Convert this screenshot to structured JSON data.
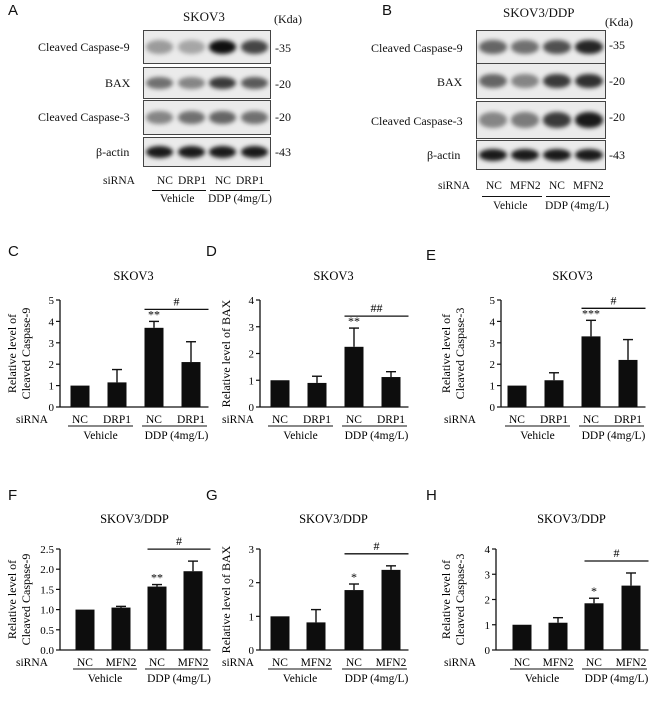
{
  "panels": {
    "A": {
      "letter": "A",
      "title": "SKOV3",
      "kda": "(Kda)",
      "rows": [
        {
          "label": "Cleaved Caspase-9",
          "kd": "-35",
          "intensity": [
            0.35,
            0.3,
            1.0,
            0.75
          ]
        },
        {
          "label": "BAX",
          "kd": "-20",
          "intensity": [
            0.55,
            0.45,
            0.8,
            0.65
          ]
        },
        {
          "label": "Cleaved Caspase-3",
          "kd": "-20",
          "intensity": [
            0.45,
            0.55,
            0.6,
            0.55
          ]
        },
        {
          "label": "β-actin",
          "kd": "-43",
          "intensity": [
            0.95,
            0.95,
            0.95,
            0.95
          ]
        }
      ],
      "sirna": "siRNA",
      "lanes": [
        "NC",
        "DRP1",
        "NC",
        "DRP1"
      ],
      "groups": [
        "Vehicle",
        "DDP (4mg/L)"
      ]
    },
    "B": {
      "letter": "B",
      "title": "SKOV3/DDP",
      "kda": "(Kda)",
      "rows": [
        {
          "label": "Cleaved Caspase-9",
          "kd": "-35",
          "intensity": [
            0.6,
            0.55,
            0.7,
            0.9
          ]
        },
        {
          "label": "BAX",
          "kd": "-20",
          "intensity": [
            0.6,
            0.45,
            0.8,
            0.85
          ]
        },
        {
          "label": "Cleaved Caspase-3",
          "kd": "-20",
          "intensity": [
            0.45,
            0.5,
            0.8,
            0.95
          ]
        },
        {
          "label": "β-actin",
          "kd": "-43",
          "intensity": [
            0.95,
            0.95,
            0.95,
            0.95
          ]
        }
      ],
      "sirna": "siRNA",
      "lanes": [
        "NC",
        "MFN2",
        "NC",
        "MFN2"
      ],
      "groups": [
        "Vehicle",
        "DDP (4mg/L)"
      ]
    }
  },
  "chart_data": [
    {
      "id": "C",
      "type": "bar",
      "title": "SKOV3",
      "ylabel": [
        "Relative level of",
        "Cleaved Caspase-9"
      ],
      "categories": [
        "NC",
        "DRP1",
        "NC",
        "DRP1"
      ],
      "values": [
        1.0,
        1.15,
        3.7,
        2.1
      ],
      "errors": [
        0,
        0.6,
        0.3,
        0.95
      ],
      "ylim": [
        0,
        5
      ],
      "yticks": [
        "0",
        "1",
        "2",
        "3",
        "4",
        "5"
      ],
      "sig": [
        "",
        "",
        "**",
        ""
      ],
      "bracket": "#",
      "sirna": "siRNA",
      "groups": [
        "Vehicle",
        "DDP (4mg/L)"
      ]
    },
    {
      "id": "D",
      "type": "bar",
      "title": "SKOV3",
      "ylabel": [
        "Relative level of BAX"
      ],
      "categories": [
        "NC",
        "DRP1",
        "NC",
        "DRP1"
      ],
      "values": [
        1.0,
        0.9,
        2.25,
        1.12
      ],
      "errors": [
        0,
        0.25,
        0.7,
        0.2
      ],
      "ylim": [
        0,
        4
      ],
      "yticks": [
        "0",
        "1",
        "2",
        "3",
        "4"
      ],
      "sig": [
        "",
        "",
        "**",
        ""
      ],
      "bracket": "##",
      "sirna": "siRNA",
      "groups": [
        "Vehicle",
        "DDP (4mg/L)"
      ]
    },
    {
      "id": "E",
      "type": "bar",
      "title": "SKOV3",
      "ylabel": [
        "Relative level of",
        "Cleaved Caspase-3"
      ],
      "categories": [
        "NC",
        "DRP1",
        "NC",
        "DRP1"
      ],
      "values": [
        1.0,
        1.25,
        3.3,
        2.2
      ],
      "errors": [
        0,
        0.35,
        0.75,
        0.95
      ],
      "ylim": [
        0,
        5
      ],
      "yticks": [
        "0",
        "1",
        "2",
        "3",
        "4",
        "5"
      ],
      "sig": [
        "",
        "",
        "***",
        ""
      ],
      "bracket": "#",
      "sirna": "siRNA",
      "groups": [
        "Vehicle",
        "DDP (4mg/L)"
      ]
    },
    {
      "id": "F",
      "type": "bar",
      "title": "SKOV3/DDP",
      "ylabel": [
        "Relative level of",
        "Cleaved Caspase-9"
      ],
      "categories": [
        "NC",
        "MFN2",
        "NC",
        "MFN2"
      ],
      "values": [
        1.0,
        1.05,
        1.57,
        1.95
      ],
      "errors": [
        0,
        0.03,
        0.05,
        0.25
      ],
      "ylim": [
        0,
        2.5
      ],
      "yticks": [
        "0.0",
        "0.5",
        "1.0",
        "1.5",
        "2.0",
        "2.5"
      ],
      "sig": [
        "",
        "",
        "**",
        ""
      ],
      "bracket": "#",
      "sirna": "siRNA",
      "groups": [
        "Vehicle",
        "DDP (4mg/L)"
      ]
    },
    {
      "id": "G",
      "type": "bar",
      "title": "SKOV3/DDP",
      "ylabel": [
        "Relative level of BAX"
      ],
      "categories": [
        "NC",
        "MFN2",
        "NC",
        "MFN2"
      ],
      "values": [
        1.0,
        0.82,
        1.78,
        2.38
      ],
      "errors": [
        0,
        0.38,
        0.18,
        0.12
      ],
      "ylim": [
        0,
        3
      ],
      "yticks": [
        "0",
        "1",
        "2",
        "3"
      ],
      "sig": [
        "",
        "",
        "*",
        ""
      ],
      "bracket": "#",
      "sirna": "siRNA",
      "groups": [
        "Vehicle",
        "DDP (4mg/L)"
      ]
    },
    {
      "id": "H",
      "type": "bar",
      "title": "SKOV3/DDP",
      "ylabel": [
        "Relative level of",
        "Cleaved Caspase-3"
      ],
      "categories": [
        "NC",
        "MFN2",
        "NC",
        "MFN2"
      ],
      "values": [
        1.0,
        1.08,
        1.85,
        2.55
      ],
      "errors": [
        0,
        0.2,
        0.2,
        0.5
      ],
      "ylim": [
        0,
        4
      ],
      "yticks": [
        "0",
        "1",
        "2",
        "3",
        "4"
      ],
      "sig": [
        "",
        "",
        "*",
        ""
      ],
      "bracket": "#",
      "sirna": "siRNA",
      "groups": [
        "Vehicle",
        "DDP (4mg/L)"
      ]
    }
  ]
}
